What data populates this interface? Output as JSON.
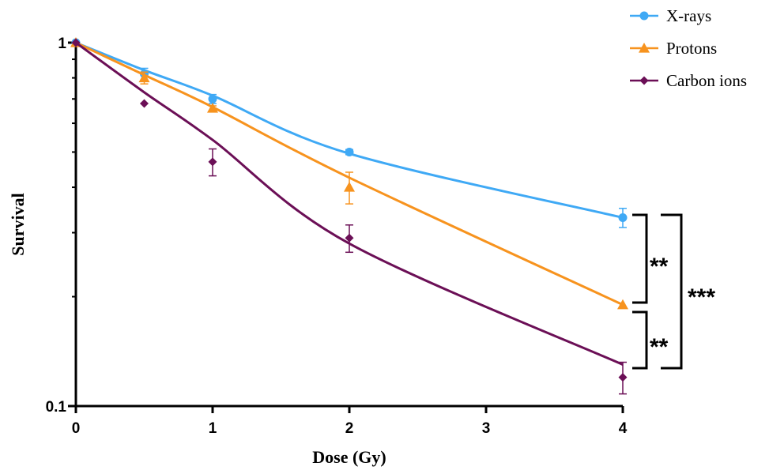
{
  "chart_data": {
    "type": "line",
    "xlabel": "Dose (Gy)",
    "ylabel": "Survival",
    "xlim": [
      0,
      4
    ],
    "ylim": [
      0.1,
      1
    ],
    "yscale": "log",
    "x_ticks": [
      {
        "value": 0,
        "label": "0"
      },
      {
        "value": 1,
        "label": "1"
      },
      {
        "value": 2,
        "label": "2"
      },
      {
        "value": 3,
        "label": "3"
      },
      {
        "value": 4,
        "label": "4"
      }
    ],
    "y_ticks": [
      {
        "value": 1,
        "label": "1"
      },
      {
        "value": 0.1,
        "label": "0.1"
      }
    ],
    "legend_position": "top-right",
    "series": [
      {
        "name": "X-rays",
        "color": "#3fa9f5",
        "marker": "circle",
        "x": [
          0,
          0.5,
          1,
          2,
          4
        ],
        "y": [
          1.0,
          0.82,
          0.7,
          0.5,
          0.33
        ],
        "err": [
          0,
          0.03,
          0.02,
          0.008,
          0.02
        ],
        "fit_y": [
          1.0,
          0.84,
          0.715,
          0.495,
          0.33
        ]
      },
      {
        "name": "Protons",
        "color": "#f7931e",
        "marker": "triangle",
        "x": [
          0,
          0.5,
          1,
          2,
          4
        ],
        "y": [
          1.0,
          0.8,
          0.66,
          0.4,
          0.19
        ],
        "err": [
          0,
          0.03,
          0.01,
          0.04,
          0
        ],
        "fit_y": [
          1.0,
          0.815,
          0.665,
          0.425,
          0.19
        ]
      },
      {
        "name": "Carbon ions",
        "color": "#6b0f56",
        "marker": "diamond",
        "x": [
          0,
          0.5,
          1,
          2,
          4
        ],
        "y": [
          1.0,
          0.68,
          0.47,
          0.29,
          0.12
        ],
        "err": [
          0,
          0,
          0.04,
          0.025,
          0.012
        ],
        "fit_y": [
          1.0,
          0.73,
          0.54,
          0.28,
          0.13
        ]
      }
    ],
    "annotations": [
      {
        "text": "**",
        "between": [
          "X-rays",
          "Protons"
        ]
      },
      {
        "text": "**",
        "between": [
          "Protons",
          "Carbon ions"
        ]
      },
      {
        "text": "***",
        "between": [
          "X-rays",
          "Carbon ions"
        ]
      }
    ]
  }
}
